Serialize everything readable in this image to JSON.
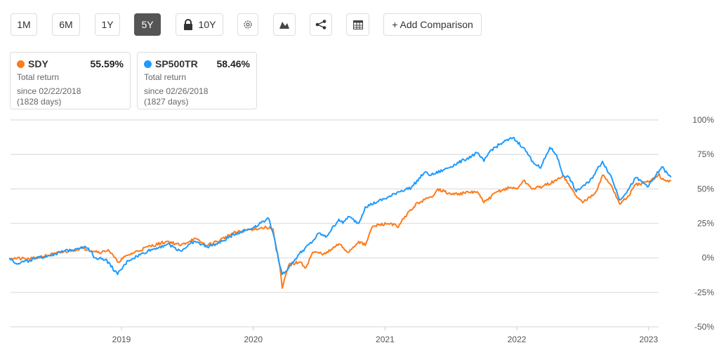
{
  "toolbar": {
    "ranges": [
      "1M",
      "6M",
      "1Y",
      "5Y",
      "10Y"
    ],
    "active": "5Y",
    "add_comparison": "+ Add Comparison"
  },
  "cards": [
    {
      "symbol": "SDY",
      "value": "55.59%",
      "label": "Total return",
      "since": "since 02/22/2018",
      "days": "(1828 days)",
      "color": "#ff7a1a"
    },
    {
      "symbol": "SP500TR",
      "value": "58.46%",
      "label": "Total return",
      "since": "since 02/26/2018",
      "days": "(1827 days)",
      "color": "#1e9bff"
    }
  ],
  "chart_data": {
    "type": "line",
    "xlabel": "",
    "ylabel": "",
    "ylim": [
      -50,
      100
    ],
    "xlim": [
      2018.15,
      2023.17
    ],
    "y_ticks": [
      100,
      75,
      50,
      25,
      0,
      -25,
      -50
    ],
    "y_tick_labels": [
      "100%",
      "75%",
      "50%",
      "25%",
      "0%",
      "-25%",
      "-50%"
    ],
    "x_ticks": [
      2019,
      2020,
      2021,
      2022,
      2023
    ],
    "x_tick_labels": [
      "2019",
      "2020",
      "2021",
      "2022",
      "2023"
    ],
    "grid": true,
    "series": [
      {
        "name": "SDY",
        "color": "#ff7a1a",
        "points": [
          [
            2018.15,
            0
          ],
          [
            2018.3,
            -1
          ],
          [
            2018.5,
            3
          ],
          [
            2018.7,
            7
          ],
          [
            2018.75,
            6
          ],
          [
            2018.85,
            4
          ],
          [
            2018.9,
            6
          ],
          [
            2018.97,
            -3
          ],
          [
            2019.05,
            2
          ],
          [
            2019.2,
            8
          ],
          [
            2019.35,
            12
          ],
          [
            2019.45,
            9
          ],
          [
            2019.55,
            14
          ],
          [
            2019.65,
            9
          ],
          [
            2019.75,
            13
          ],
          [
            2019.85,
            18
          ],
          [
            2020.0,
            21
          ],
          [
            2020.1,
            22
          ],
          [
            2020.15,
            21
          ],
          [
            2020.17,
            10
          ],
          [
            2020.2,
            -5
          ],
          [
            2020.22,
            -22
          ],
          [
            2020.27,
            -5
          ],
          [
            2020.35,
            -3
          ],
          [
            2020.4,
            -7
          ],
          [
            2020.45,
            4
          ],
          [
            2020.55,
            3
          ],
          [
            2020.65,
            10
          ],
          [
            2020.72,
            4
          ],
          [
            2020.8,
            12
          ],
          [
            2020.85,
            9
          ],
          [
            2020.9,
            22
          ],
          [
            2020.95,
            24
          ],
          [
            2021.05,
            25
          ],
          [
            2021.1,
            22
          ],
          [
            2021.15,
            30
          ],
          [
            2021.25,
            40
          ],
          [
            2021.35,
            44
          ],
          [
            2021.4,
            50
          ],
          [
            2021.5,
            46
          ],
          [
            2021.6,
            47
          ],
          [
            2021.7,
            48
          ],
          [
            2021.75,
            40
          ],
          [
            2021.85,
            48
          ],
          [
            2021.95,
            51
          ],
          [
            2022.0,
            50
          ],
          [
            2022.05,
            56
          ],
          [
            2022.12,
            50
          ],
          [
            2022.2,
            52
          ],
          [
            2022.3,
            56
          ],
          [
            2022.35,
            60
          ],
          [
            2022.4,
            52
          ],
          [
            2022.45,
            45
          ],
          [
            2022.5,
            40
          ],
          [
            2022.55,
            44
          ],
          [
            2022.6,
            48
          ],
          [
            2022.65,
            60
          ],
          [
            2022.72,
            52
          ],
          [
            2022.78,
            39
          ],
          [
            2022.85,
            45
          ],
          [
            2022.9,
            53
          ],
          [
            2023.0,
            55
          ],
          [
            2023.05,
            58
          ],
          [
            2023.08,
            61
          ],
          [
            2023.1,
            57
          ],
          [
            2023.17,
            55.6
          ]
        ]
      },
      {
        "name": "SP500TR",
        "color": "#1e9bff",
        "points": [
          [
            2018.15,
            0
          ],
          [
            2018.2,
            -4
          ],
          [
            2018.3,
            -2
          ],
          [
            2018.5,
            3
          ],
          [
            2018.7,
            8
          ],
          [
            2018.75,
            7
          ],
          [
            2018.8,
            0
          ],
          [
            2018.88,
            -1
          ],
          [
            2018.97,
            -12
          ],
          [
            2019.05,
            -2
          ],
          [
            2019.2,
            5
          ],
          [
            2019.35,
            10
          ],
          [
            2019.45,
            5
          ],
          [
            2019.55,
            12
          ],
          [
            2019.65,
            8
          ],
          [
            2019.75,
            11
          ],
          [
            2019.85,
            17
          ],
          [
            2020.0,
            22
          ],
          [
            2020.1,
            28
          ],
          [
            2020.12,
            28
          ],
          [
            2020.15,
            18
          ],
          [
            2020.2,
            -5
          ],
          [
            2020.22,
            -12
          ],
          [
            2020.27,
            -7
          ],
          [
            2020.35,
            3
          ],
          [
            2020.45,
            12
          ],
          [
            2020.5,
            18
          ],
          [
            2020.55,
            15
          ],
          [
            2020.65,
            28
          ],
          [
            2020.68,
            25
          ],
          [
            2020.72,
            30
          ],
          [
            2020.8,
            25
          ],
          [
            2020.85,
            37
          ],
          [
            2020.95,
            41
          ],
          [
            2021.05,
            45
          ],
          [
            2021.1,
            48
          ],
          [
            2021.2,
            51
          ],
          [
            2021.3,
            62
          ],
          [
            2021.35,
            60
          ],
          [
            2021.45,
            64
          ],
          [
            2021.6,
            71
          ],
          [
            2021.7,
            76
          ],
          [
            2021.75,
            70
          ],
          [
            2021.8,
            78
          ],
          [
            2021.9,
            84
          ],
          [
            2021.97,
            87
          ],
          [
            2022.05,
            80
          ],
          [
            2022.12,
            70
          ],
          [
            2022.18,
            65
          ],
          [
            2022.25,
            80
          ],
          [
            2022.3,
            75
          ],
          [
            2022.35,
            60
          ],
          [
            2022.4,
            58
          ],
          [
            2022.45,
            48
          ],
          [
            2022.5,
            52
          ],
          [
            2022.55,
            55
          ],
          [
            2022.65,
            70
          ],
          [
            2022.72,
            58
          ],
          [
            2022.78,
            42
          ],
          [
            2022.85,
            50
          ],
          [
            2022.9,
            58
          ],
          [
            2023.0,
            52
          ],
          [
            2023.05,
            59
          ],
          [
            2023.1,
            66
          ],
          [
            2023.15,
            60
          ],
          [
            2023.17,
            58.5
          ]
        ]
      }
    ]
  }
}
